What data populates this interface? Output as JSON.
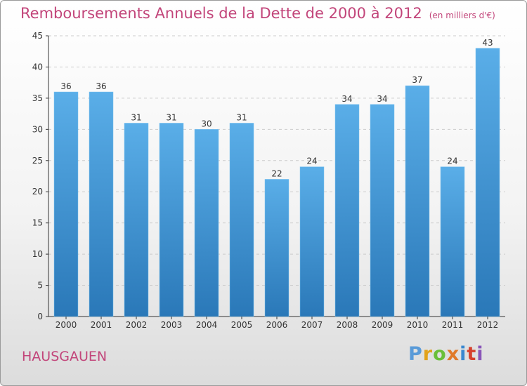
{
  "title": "Remboursements Annuels de la Dette de 2000 à 2012",
  "unit": "(en milliers d'€)",
  "commune": "HAUSGAUEN",
  "logo": {
    "text": "Proxiti",
    "letter_colors": [
      "#5a9bd8",
      "#e2a21a",
      "#6abf3a",
      "#e07a2a",
      "#3a88d0",
      "#d6412e",
      "#8a56b8"
    ]
  },
  "colors": {
    "title": "#c2457a",
    "bar_top": "#5aaee8",
    "bar_bottom": "#2a78b8",
    "axis": "#333333",
    "grid": "#cccccc"
  },
  "chart_data": {
    "type": "bar",
    "title": "Remboursements Annuels de la Dette de 2000 à 2012",
    "categories": [
      "2000",
      "2001",
      "2002",
      "2003",
      "2004",
      "2005",
      "2006",
      "2007",
      "2008",
      "2009",
      "2010",
      "2011",
      "2012"
    ],
    "values": [
      36,
      36,
      31,
      31,
      30,
      31,
      22,
      24,
      34,
      34,
      37,
      24,
      43
    ],
    "ylim": [
      0,
      45
    ],
    "yticks": [
      0,
      5,
      10,
      15,
      20,
      25,
      30,
      35,
      40,
      45
    ],
    "grid": "horizontal dashed",
    "data_labels": true
  }
}
